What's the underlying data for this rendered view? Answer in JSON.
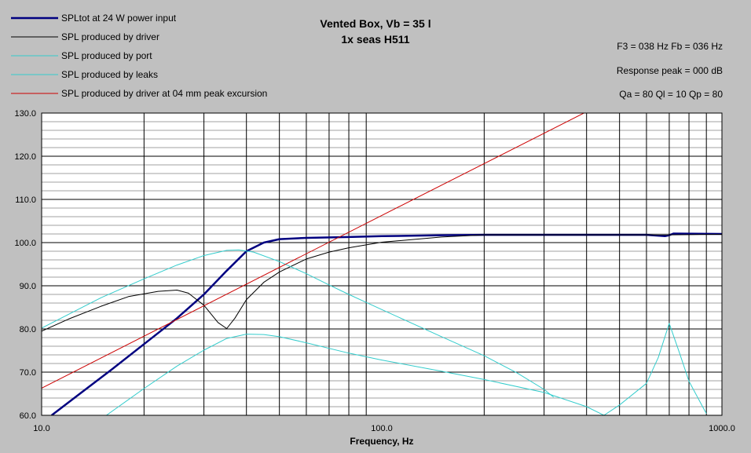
{
  "chart_data": {
    "type": "line",
    "title": "Vented Box, Vb = 35 l",
    "subtitle": "1x seas H511",
    "xlabel": "Frequency, Hz",
    "ylabel": "",
    "x_scale": "log",
    "xlim": [
      10,
      1000
    ],
    "ylim": [
      60,
      130
    ],
    "grid": true,
    "legend_position": "top-left",
    "x_tick_labels": [
      "10.0",
      "100.0",
      "1000.0"
    ],
    "x_tick_values": [
      10,
      100,
      1000
    ],
    "y_tick_labels": [
      "60.0",
      "70.0",
      "80.0",
      "90.0",
      "100.0",
      "110.0",
      "120.0",
      "130.0"
    ],
    "y_tick_values": [
      60,
      70,
      80,
      90,
      100,
      110,
      120,
      130
    ],
    "info": {
      "line1": "F3 = 038 Hz  Fb = 036 Hz",
      "line2": "Response peak = 000 dB",
      "line3": "Qa = 80  Ql = 10  Qp = 80"
    },
    "series": [
      {
        "name": "SPLtot at 24 W power input",
        "color": "#000080",
        "points": [
          [
            10.7,
            60
          ],
          [
            13,
            65.1
          ],
          [
            16,
            70.5
          ],
          [
            20,
            76.5
          ],
          [
            25,
            82.5
          ],
          [
            30,
            88
          ],
          [
            35,
            93.5
          ],
          [
            40,
            98
          ],
          [
            45,
            100
          ],
          [
            50,
            100.8
          ],
          [
            60,
            101.1
          ],
          [
            80,
            101.3
          ],
          [
            100,
            101.5
          ],
          [
            150,
            101.7
          ],
          [
            200,
            101.8
          ],
          [
            300,
            101.8
          ],
          [
            500,
            101.8
          ],
          [
            600,
            101.8
          ],
          [
            680,
            101.5
          ],
          [
            700,
            101.7
          ],
          [
            720,
            102.1
          ],
          [
            1000,
            102
          ]
        ]
      },
      {
        "name": "SPL produced by driver",
        "color": "#000000",
        "points": [
          [
            10,
            79.5
          ],
          [
            12,
            82.3
          ],
          [
            15,
            85.3
          ],
          [
            18,
            87.5
          ],
          [
            22,
            88.7
          ],
          [
            25,
            89
          ],
          [
            27,
            88.3
          ],
          [
            30,
            85.5
          ],
          [
            33,
            81.5
          ],
          [
            35,
            80.1
          ],
          [
            37,
            82.5
          ],
          [
            40,
            86.8
          ],
          [
            45,
            90.8
          ],
          [
            50,
            93.2
          ],
          [
            60,
            96.2
          ],
          [
            70,
            97.8
          ],
          [
            80,
            98.8
          ],
          [
            100,
            100.1
          ],
          [
            150,
            101.3
          ],
          [
            200,
            101.8
          ],
          [
            300,
            101.8
          ],
          [
            500,
            101.8
          ],
          [
            700,
            101.8
          ],
          [
            1000,
            101.9
          ]
        ]
      },
      {
        "name": "SPL produced by port",
        "color": "#33cccc",
        "points": [
          [
            10,
            80.2
          ],
          [
            15,
            87.3
          ],
          [
            20,
            91.6
          ],
          [
            25,
            94.8
          ],
          [
            30,
            97
          ],
          [
            35,
            98.2
          ],
          [
            38,
            98.3
          ],
          [
            42,
            97.8
          ],
          [
            50,
            95.6
          ],
          [
            60,
            92.8
          ],
          [
            70,
            90.2
          ],
          [
            80,
            88
          ],
          [
            100,
            84.5
          ],
          [
            150,
            78.2
          ],
          [
            200,
            73.8
          ],
          [
            250,
            69.8
          ],
          [
            300,
            66
          ],
          [
            320,
            64.2
          ]
        ]
      },
      {
        "name": "SPL produced by leaks",
        "color": "#33cccc",
        "points": [
          [
            15.5,
            60
          ],
          [
            20,
            66.2
          ],
          [
            25,
            71.4
          ],
          [
            30,
            75.1
          ],
          [
            35,
            77.8
          ],
          [
            40,
            78.8
          ],
          [
            45,
            78.7
          ],
          [
            50,
            78.2
          ],
          [
            60,
            76.8
          ],
          [
            80,
            74.4
          ],
          [
            100,
            72.8
          ],
          [
            150,
            70.2
          ],
          [
            200,
            68.3
          ],
          [
            300,
            65.3
          ],
          [
            400,
            62
          ],
          [
            450,
            60
          ],
          [
            500,
            62.4
          ],
          [
            600,
            67.4
          ],
          [
            650,
            73.4
          ],
          [
            700,
            81.3
          ],
          [
            750,
            74.5
          ],
          [
            800,
            67.9
          ],
          [
            880,
            61.8
          ],
          [
            900,
            60.4
          ]
        ]
      },
      {
        "name": "SPL produced by driver at 04 mm peak excursion",
        "color": "#cc0000",
        "points": [
          [
            10,
            66.3
          ],
          [
            100,
            106.3
          ],
          [
            400,
            130.3
          ]
        ]
      }
    ]
  }
}
